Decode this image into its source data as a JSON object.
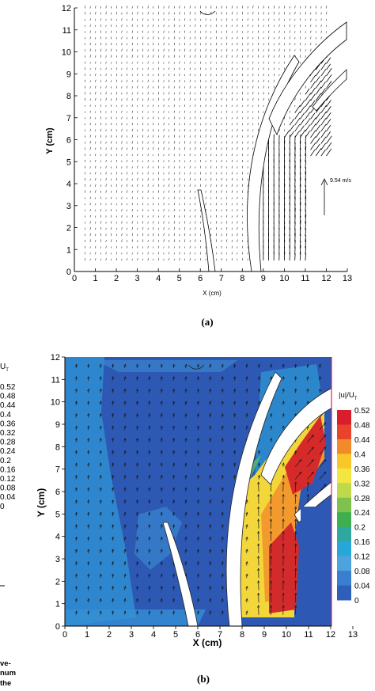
{
  "chart_data": [
    {
      "type": "vector-field",
      "panel_label": "(a)",
      "xlabel": "X (cm)",
      "ylabel": "Y (cm)",
      "xlim": [
        0,
        13
      ],
      "ylim": [
        0,
        12
      ],
      "x_ticks": [
        0,
        1,
        2,
        3,
        4,
        5,
        6,
        7,
        8,
        9,
        10,
        11,
        12,
        13
      ],
      "y_ticks": [
        0,
        1,
        2,
        3,
        4,
        5,
        6,
        7,
        8,
        9,
        10,
        11,
        12
      ],
      "reference_vector_label": "9.54 m/s",
      "grid": false
    },
    {
      "type": "contour",
      "panel_label": "(b)",
      "xlabel": "X (cm)",
      "ylabel": "Y (cm)",
      "xlim": [
        0,
        13
      ],
      "ylim": [
        0,
        12
      ],
      "x_ticks": [
        0,
        1,
        2,
        3,
        4,
        5,
        6,
        7,
        8,
        9,
        10,
        11,
        12,
        13
      ],
      "y_ticks": [
        0,
        1,
        2,
        3,
        4,
        5,
        6,
        7,
        8,
        9,
        10,
        11,
        12
      ],
      "colorbar_title": "|u|/U",
      "colorbar_subscript": "T",
      "colorbar_levels": [
        0.52,
        0.48,
        0.44,
        0.4,
        0.36,
        0.32,
        0.28,
        0.24,
        0.2,
        0.16,
        0.12,
        0.08,
        0.04,
        0
      ],
      "colorbar_colors": [
        "#d81e2a",
        "#e8432c",
        "#f08a2a",
        "#f8c82a",
        "#f2e640",
        "#bfd94a",
        "#7cc24c",
        "#3fae4e",
        "#2fa6a0",
        "#26a7d8",
        "#4fa3dc",
        "#3a7fcf",
        "#2f5fb8",
        "#2a46a0"
      ],
      "grid": false
    }
  ],
  "left_edge_fragment": {
    "legend_title": "U",
    "legend_subscript": "T",
    "legend_values": [
      "0.52",
      "0.48",
      "0.44",
      "0.4",
      "0.36",
      "0.32",
      "0.28",
      "0.24",
      "0.2",
      "0.16",
      "0.12",
      "0.08",
      "0.04",
      "0"
    ],
    "caption_fragments": [
      "ve-",
      "num",
      "the"
    ]
  }
}
